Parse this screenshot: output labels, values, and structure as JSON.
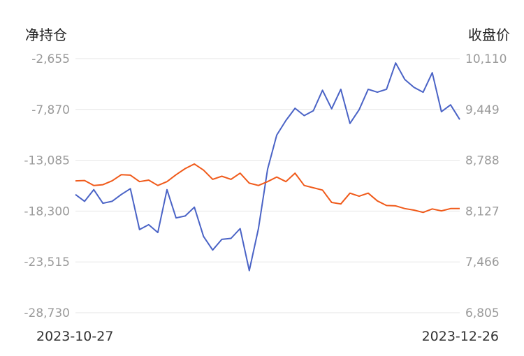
{
  "chart_data": {
    "type": "line",
    "ylabel_left": "净持仓",
    "ylabel_right": "收盘价",
    "x_labels": [
      "2023-10-27",
      "2023-12-26"
    ],
    "yticks_left": [
      "-2,655",
      "-7,870",
      "-13,085",
      "-18,300",
      "-23,515",
      "-28,730"
    ],
    "yticks_right": [
      "10,110",
      "9,449",
      "8,788",
      "8,127",
      "7,466",
      "6,805"
    ],
    "ylim_left": [
      -28730,
      -2655
    ],
    "ylim_right": [
      6805,
      10110
    ],
    "grid": true,
    "series": [
      {
        "axis": "left",
        "color": "#4a63c6",
        "values": [
          -16600,
          -17300,
          -16100,
          -17500,
          -17300,
          -16600,
          -16000,
          -20200,
          -19700,
          -20500,
          -16100,
          -19000,
          -18800,
          -17900,
          -20900,
          -22300,
          -21200,
          -21100,
          -20100,
          -24400,
          -20100,
          -14000,
          -10500,
          -9000,
          -7750,
          -8500,
          -8000,
          -5900,
          -7800,
          -5800,
          -9300,
          -7900,
          -5800,
          -6100,
          -5800,
          -3100,
          -4800,
          -5600,
          -6100,
          -4100,
          -8100,
          -7400,
          -8900
        ]
      },
      {
        "axis": "right",
        "color": "#f05a1a",
        "values": [
          8520,
          8525,
          8460,
          8470,
          8520,
          8600,
          8595,
          8510,
          8530,
          8460,
          8510,
          8600,
          8680,
          8740,
          8660,
          8540,
          8580,
          8540,
          8620,
          8490,
          8460,
          8510,
          8570,
          8510,
          8620,
          8460,
          8430,
          8400,
          8240,
          8220,
          8360,
          8320,
          8360,
          8260,
          8200,
          8195,
          8160,
          8140,
          8110,
          8155,
          8130,
          8160,
          8160
        ]
      }
    ]
  }
}
